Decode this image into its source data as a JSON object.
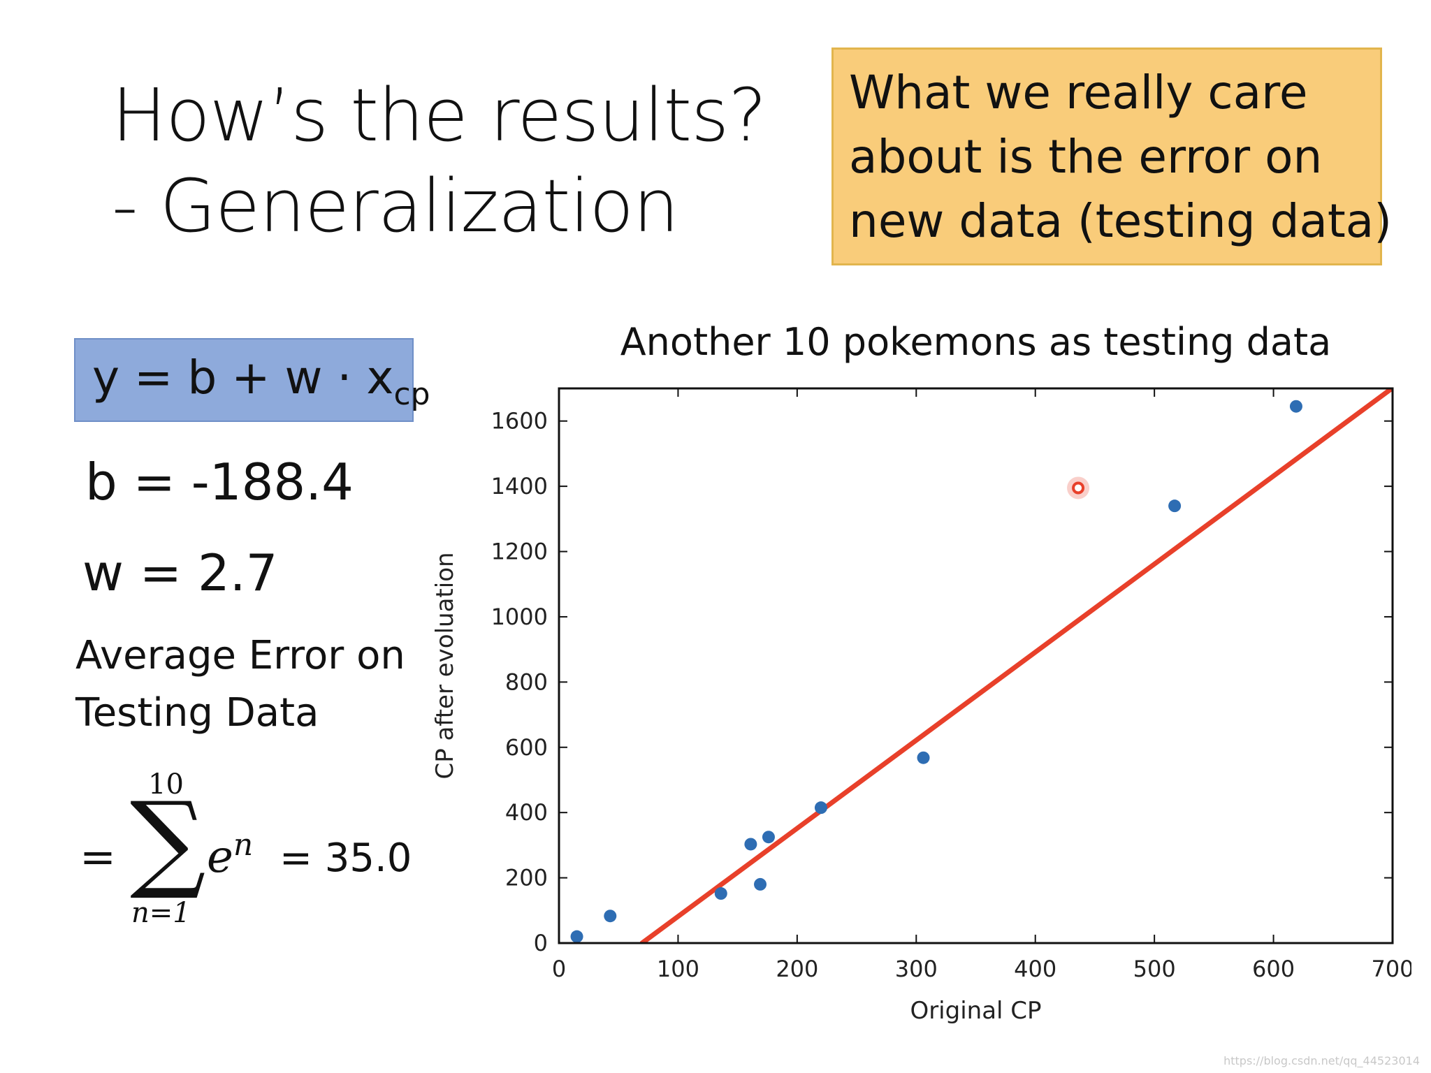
{
  "slide": {
    "title_lines": [
      "How’s the results?",
      "- Generalization"
    ],
    "note_lines": [
      "What we really care",
      "about is the error on",
      "new data (testing data)"
    ],
    "formula": {
      "main": "y = b + w · x",
      "subscript": "cp"
    },
    "param_b": "b = -188.4",
    "param_w": "w = 2.7",
    "avg_error_lines": [
      "Average Error on",
      "Testing Data"
    ],
    "sum": {
      "equals": "=",
      "upper": "10",
      "sigma": "∑",
      "lower": "n=1",
      "term": "e",
      "exponent": "n",
      "result": "= 35.0"
    },
    "watermark": "https://blog.csdn.net/qq_44523014"
  },
  "colors": {
    "note_bg": "#f9cc7a",
    "formula_bg": "#8eaadb",
    "points": "#2e6db3",
    "line": "#e8402a",
    "highlight": "#e8402a"
  },
  "chart_data": {
    "type": "scatter",
    "title": "Another 10 pokemons as testing data",
    "xlabel": "Original CP",
    "ylabel": "CP after evoluation",
    "xlim": [
      0,
      700
    ],
    "ylim": [
      0,
      1700
    ],
    "xticks": [
      0,
      100,
      200,
      300,
      400,
      500,
      600,
      700
    ],
    "yticks": [
      0,
      200,
      400,
      600,
      800,
      1000,
      1200,
      1400,
      1600
    ],
    "grid": false,
    "series": [
      {
        "points": [
          {
            "x": 15,
            "y": 20
          },
          {
            "x": 43,
            "y": 83
          },
          {
            "x": 136,
            "y": 152
          },
          {
            "x": 161,
            "y": 303
          },
          {
            "x": 169,
            "y": 180
          },
          {
            "x": 176,
            "y": 325
          },
          {
            "x": 220,
            "y": 415
          },
          {
            "x": 306,
            "y": 568
          },
          {
            "x": 517,
            "y": 1340
          },
          {
            "x": 619,
            "y": 1645
          }
        ]
      }
    ],
    "highlight_point": {
      "x": 436,
      "y": 1395
    },
    "fit_line": {
      "b": -188.4,
      "w": 2.7
    }
  }
}
